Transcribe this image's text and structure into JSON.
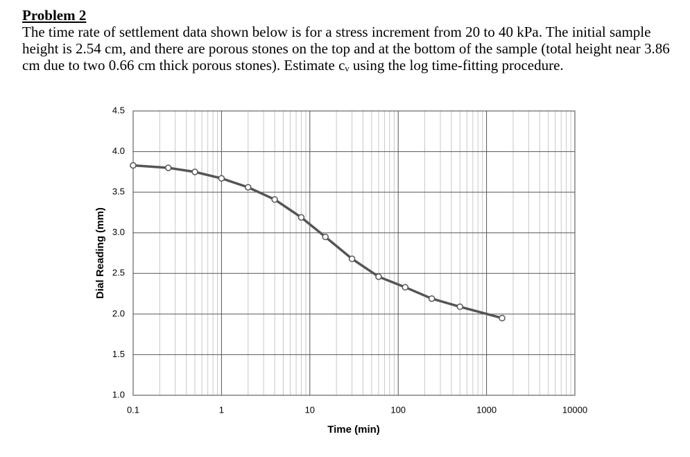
{
  "problem": {
    "title": "Problem 2",
    "text": "The time rate of settlement data shown below is for a stress increment from 20 to 40 kPa. The initial sample height is 2.54 cm, and there are porous stones on the top and at the bottom of the sample (total height near 3.86 cm due to two 0.66 cm thick porous stones). Estimate cᵥ using the log time-fitting procedure."
  },
  "chart_data": {
    "type": "line",
    "xlabel": "Time (min)",
    "ylabel": "Dial Reading (mm)",
    "x": [
      0.1,
      0.25,
      0.5,
      1,
      2,
      4,
      8,
      15,
      30,
      60,
      120,
      240,
      500,
      1500
    ],
    "values": [
      3.83,
      3.8,
      3.75,
      3.67,
      3.56,
      3.41,
      3.19,
      2.95,
      2.68,
      2.46,
      2.33,
      2.19,
      2.09,
      1.95
    ],
    "color": "#555555",
    "xscale": "log",
    "xlim": [
      0.1,
      10000
    ],
    "xticks": [
      0.1,
      1,
      10,
      100,
      1000,
      10000
    ],
    "ylim": [
      1,
      4.5
    ],
    "yticks": [
      {
        "value": 1,
        "label": "1.0"
      },
      1.5,
      {
        "value": 2,
        "label": "2.0"
      },
      2.5,
      {
        "value": 3,
        "label": "3.0"
      },
      3.5,
      {
        "value": 4,
        "label": "4.0"
      },
      4.5
    ],
    "grid": true
  }
}
